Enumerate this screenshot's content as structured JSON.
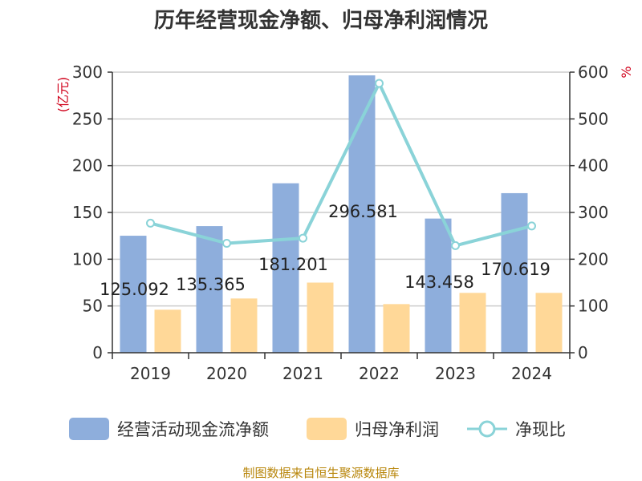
{
  "chart_data": {
    "type": "bar",
    "title": "历年经营现金净额、归母净利润情况",
    "categories": [
      "2019",
      "2020",
      "2021",
      "2022",
      "2023",
      "2024"
    ],
    "left_axis": {
      "unit": "(亿元)",
      "min": 0,
      "max": 300,
      "ticks": [
        0,
        50,
        100,
        150,
        200,
        250,
        300
      ]
    },
    "right_axis": {
      "unit": "%",
      "min": 0,
      "max": 600,
      "ticks": [
        0,
        100,
        200,
        300,
        400,
        500,
        600
      ]
    },
    "series": [
      {
        "name": "经营活动现金流净额",
        "kind": "bar",
        "axis": "left",
        "color": "#8eaedc",
        "values": [
          125.092,
          135.365,
          181.201,
          296.581,
          143.458,
          170.619
        ],
        "labels": [
          "125.092",
          "135.365",
          "181.201",
          "296.581",
          "143.458",
          "170.619"
        ]
      },
      {
        "name": "归母净利润",
        "kind": "bar",
        "axis": "left",
        "color": "#ffd898",
        "values": [
          46,
          58,
          75,
          52,
          64,
          64
        ]
      },
      {
        "name": "净现比",
        "kind": "line",
        "axis": "right",
        "color": "#8ad3d8",
        "values": [
          277,
          234,
          245,
          576,
          229,
          271
        ]
      }
    ],
    "legend_position": "bottom",
    "grid": true
  },
  "source_text": "制图数据来自恒生聚源数据库"
}
